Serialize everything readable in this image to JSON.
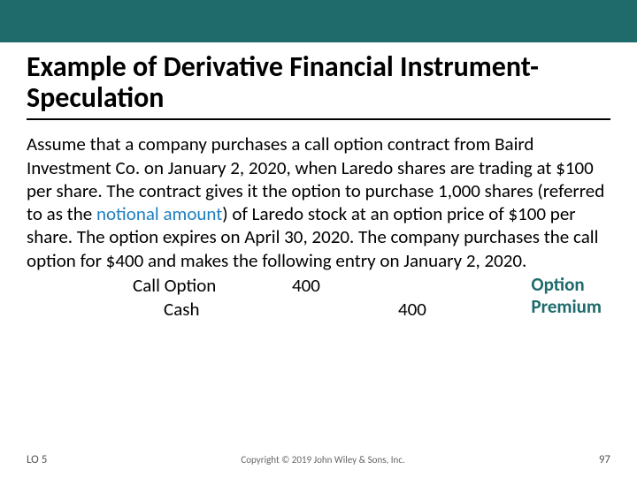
{
  "colors": {
    "top_bar": "#1f6b6b",
    "background": "#ffffff",
    "title_text": "#000000",
    "body_text": "#000000",
    "notional_text": "#1f7fbf",
    "annotation_text": "#1f6b6b",
    "footer_text": "#666666",
    "rule": "#000000"
  },
  "typography": {
    "title_fontsize": 32,
    "title_weight": 700,
    "body_fontsize": 21,
    "annotation_fontsize": 21,
    "annotation_weight": 700,
    "footer_fontsize": 11
  },
  "title": "Example of Derivative Financial Instrument-Speculation",
  "body": {
    "prefix": "Assume that a company purchases a call option contract from Baird Investment Co. on January 2, 2020, when Laredo shares are trading at $100 per share. The contract gives it the option to purchase 1,000 shares (referred to as the ",
    "notional": "notional amount",
    "suffix": ") of Laredo stock at an option price of $100 per share. The option expires on April 30, 2020. The company purchases the call option for $400 and makes the following entry on January 2, 2020."
  },
  "journal_entry": {
    "debit": {
      "label": "Call Option",
      "amount": "400"
    },
    "credit": {
      "label": "Cash",
      "amount": "400"
    }
  },
  "annotation": {
    "line1": "Option",
    "line2": "Premium"
  },
  "footer": {
    "lo": "LO 5",
    "copyright": "Copyright © 2019 John Wiley & Sons, Inc.",
    "page": "97"
  }
}
